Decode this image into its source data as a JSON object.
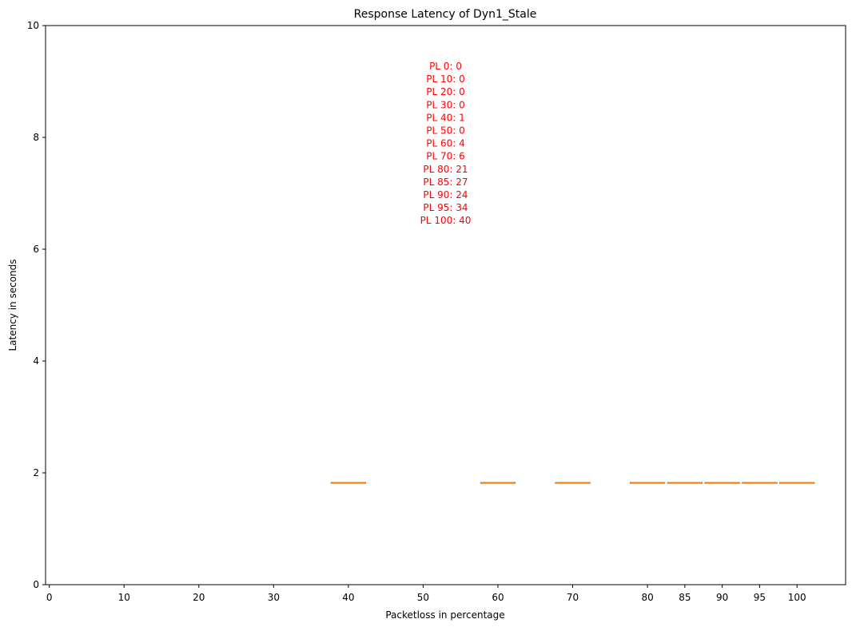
{
  "chart_data": {
    "type": "box",
    "title": "Response Latency of Dyn1_Stale",
    "xlabel": "Packetloss in percentage",
    "ylabel": "Latency in seconds",
    "ylim": [
      0,
      10
    ],
    "xlim": [
      -0.5,
      106.5
    ],
    "y_ticks": [
      0,
      2,
      4,
      6,
      8,
      10
    ],
    "y_tick_labels": [
      "0",
      "2",
      "4",
      "6",
      "8",
      "10"
    ],
    "x_ticks": [
      0,
      10,
      20,
      30,
      40,
      50,
      60,
      70,
      80,
      85,
      90,
      95,
      100
    ],
    "x_tick_labels": [
      "0",
      "10",
      "20",
      "30",
      "40",
      "50",
      "60",
      "70",
      "80",
      "85",
      "90",
      "95",
      "100"
    ],
    "boxes": [
      {
        "x": 40,
        "median": 1.82,
        "q1": 1.82,
        "q3": 1.82,
        "whisker_low": 1.82,
        "whisker_high": 1.82
      },
      {
        "x": 60,
        "median": 1.82,
        "q1": 1.82,
        "q3": 1.82,
        "whisker_low": 1.82,
        "whisker_high": 1.82
      },
      {
        "x": 70,
        "median": 1.82,
        "q1": 1.82,
        "q3": 1.82,
        "whisker_low": 1.82,
        "whisker_high": 1.82
      },
      {
        "x": 80,
        "median": 1.82,
        "q1": 1.82,
        "q3": 1.82,
        "whisker_low": 1.82,
        "whisker_high": 1.82
      },
      {
        "x": 85,
        "median": 1.82,
        "q1": 1.82,
        "q3": 1.82,
        "whisker_low": 1.82,
        "whisker_high": 1.82
      },
      {
        "x": 90,
        "median": 1.82,
        "q1": 1.82,
        "q3": 1.82,
        "whisker_low": 1.82,
        "whisker_high": 1.82
      },
      {
        "x": 95,
        "median": 1.82,
        "q1": 1.82,
        "q3": 1.82,
        "whisker_low": 1.82,
        "whisker_high": 1.82
      },
      {
        "x": 100,
        "median": 1.82,
        "q1": 1.82,
        "q3": 1.82,
        "whisker_low": 1.82,
        "whisker_high": 1.82
      }
    ],
    "annotation_lines": [
      "PL 0: 0",
      "PL 10: 0",
      "PL 20: 0",
      "PL 30: 0",
      "PL 40: 1",
      "PL 50: 0",
      "PL 60: 4",
      "PL 70: 6",
      "PL 80: 21",
      "PL 85: 27",
      "PL 90: 24",
      "PL 95: 34",
      "PL 100: 40"
    ],
    "annotation_anchor": {
      "x": 53,
      "y": 9.3
    },
    "colors": {
      "box_edge": "#1f77b4",
      "median": "#ff7f0e",
      "annotation": "#ff0000",
      "axis": "#000000"
    }
  }
}
